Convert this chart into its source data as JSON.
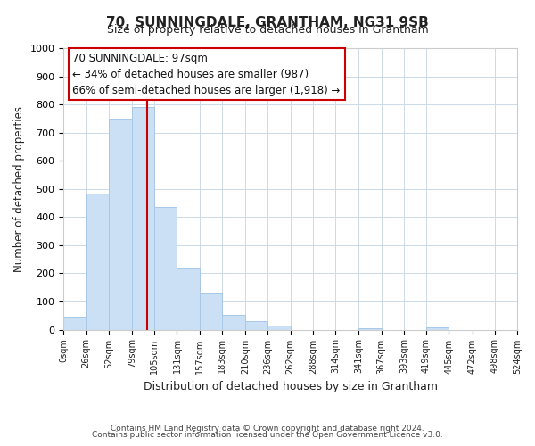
{
  "title": "70, SUNNINGDALE, GRANTHAM, NG31 9SB",
  "subtitle": "Size of property relative to detached houses in Grantham",
  "xlabel": "Distribution of detached houses by size in Grantham",
  "ylabel": "Number of detached properties",
  "bar_edges": [
    0,
    26,
    52,
    79,
    105,
    131,
    157,
    183,
    210,
    236,
    262,
    288,
    314,
    341,
    367,
    393,
    419,
    445,
    472,
    498,
    524
  ],
  "bar_heights": [
    45,
    485,
    750,
    790,
    435,
    217,
    127,
    52,
    30,
    13,
    0,
    0,
    0,
    5,
    0,
    0,
    8,
    0,
    0,
    0
  ],
  "bar_color": "#cce0f5",
  "bar_edge_color": "#a8c8e8",
  "property_line_x": 97,
  "property_line_color": "#cc0000",
  "ylim": [
    0,
    1000
  ],
  "xlim": [
    0,
    524
  ],
  "annotation_line1": "70 SUNNINGDALE: 97sqm",
  "annotation_line2": "← 34% of detached houses are smaller (987)",
  "annotation_line3": "66% of semi-detached houses are larger (1,918) →",
  "annotation_box_color": "#ffffff",
  "annotation_box_edge": "#cc0000",
  "footer_line1": "Contains HM Land Registry data © Crown copyright and database right 2024.",
  "footer_line2": "Contains public sector information licensed under the Open Government Licence v3.0.",
  "tick_labels": [
    "0sqm",
    "26sqm",
    "52sqm",
    "79sqm",
    "105sqm",
    "131sqm",
    "157sqm",
    "183sqm",
    "210sqm",
    "236sqm",
    "262sqm",
    "288sqm",
    "314sqm",
    "341sqm",
    "367sqm",
    "393sqm",
    "419sqm",
    "445sqm",
    "472sqm",
    "498sqm",
    "524sqm"
  ],
  "background_color": "#ffffff",
  "grid_color": "#cdd9e5"
}
